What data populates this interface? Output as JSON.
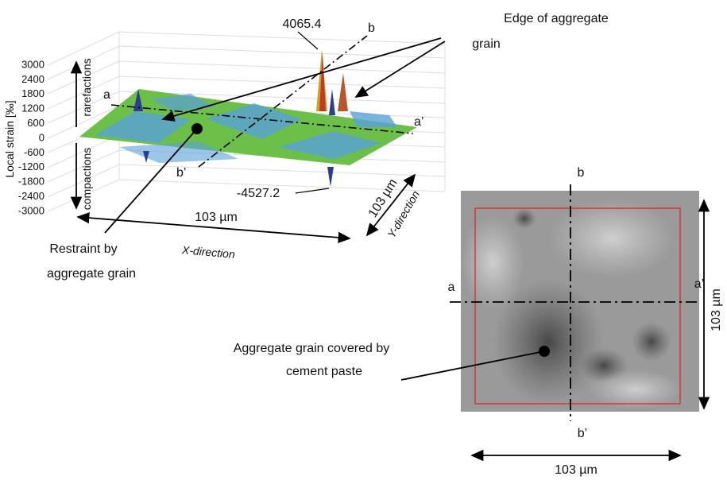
{
  "plot": {
    "axis_label": "Local strain [‰]",
    "ticks": [
      3000,
      2400,
      1800,
      1200,
      600,
      0,
      -600,
      -1200,
      -1800,
      -2400,
      -3000
    ],
    "rarefactions": "rarefactions",
    "compactions": "compactions",
    "peak": "4065.4",
    "trough": "-4527.2",
    "x_size": "103 µm",
    "y_size": "103 µm",
    "x_direction": "X-direction",
    "y_direction": "Y-direction",
    "section_a": "a",
    "section_a2": "a’",
    "section_b": "b",
    "section_b2": "b’",
    "edge_label": [
      "Edge of aggregate",
      "grain"
    ],
    "restraint_label": [
      "Restraint by",
      "aggregate grain"
    ]
  },
  "image": {
    "section_a": "a",
    "section_a2": "a’",
    "section_b": "b",
    "section_b2": "b’",
    "width": "103 µm",
    "height": "103 µm",
    "grain_label": [
      "Aggregate grain covered by",
      "cement paste"
    ]
  }
}
